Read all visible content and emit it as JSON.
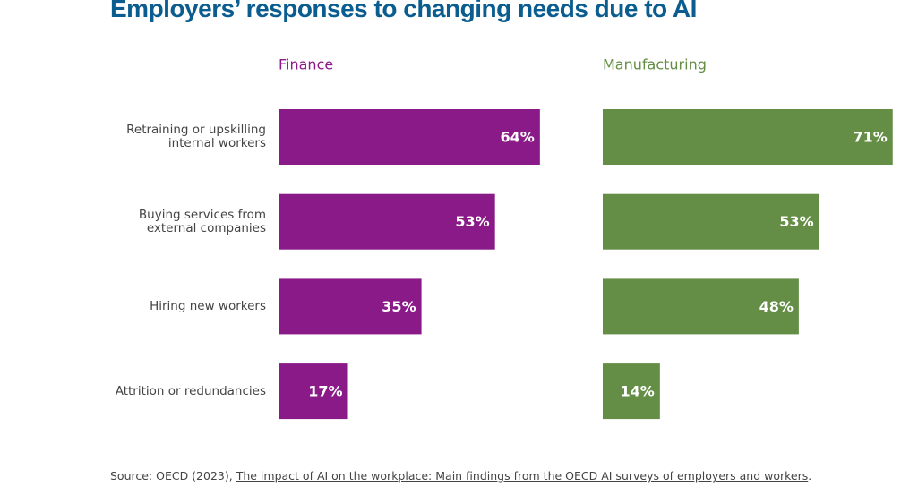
{
  "title": "Employers’ responses to changing needs due to AI",
  "categories": [
    "Retraining or upskilling internal workers",
    "Buying services from external companies",
    "Hiring new workers",
    "Attrition or redundancies"
  ],
  "chart_data": [
    {
      "type": "bar",
      "title": "Finance",
      "color": "#8a1a88",
      "values": [
        64,
        53,
        35,
        17
      ],
      "value_labels": [
        "64%",
        "53%",
        "35%",
        "17%"
      ]
    },
    {
      "type": "bar",
      "title": "Manufacturing",
      "color": "#648d45",
      "values": [
        71,
        53,
        48,
        14
      ],
      "value_labels": [
        "71%",
        "53%",
        "48%",
        "14%"
      ]
    }
  ],
  "source": {
    "prefix": "Source: OECD (2023), ",
    "link": "The impact of AI on the workplace: Main findings from the OECD AI surveys of employers and workers",
    "suffix": "."
  }
}
